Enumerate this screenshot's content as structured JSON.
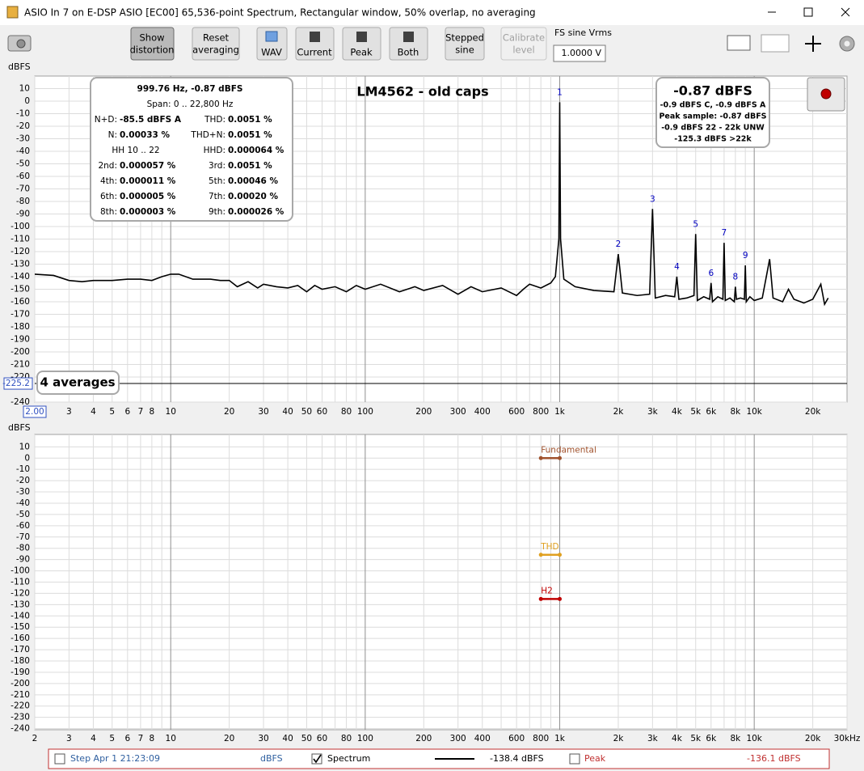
{
  "window": {
    "title": "ASIO In 7 on E-DSP ASIO [EC00] 65,536-point Spectrum, Rectangular window, 50% overlap, no averaging"
  },
  "toolbar": {
    "show_distortion": [
      "Show",
      "distortion"
    ],
    "reset_averaging": [
      "Reset",
      "averaging"
    ],
    "wav": "WAV",
    "current": "Current",
    "peak": "Peak",
    "both": "Both",
    "stepped_sine": [
      "Stepped",
      "sine"
    ],
    "calibrate_level": [
      "Calibrate",
      "level"
    ],
    "fs_label": "FS sine Vrms",
    "fs_value": "1.0000 V"
  },
  "stats": {
    "header": "999.76 Hz, -0.87 dBFS",
    "span": "Span: 0 .. 22,800 Hz",
    "rows": [
      {
        "left": {
          "label": "N+D:",
          "value": "-85.5 dBFS A"
        },
        "right": {
          "label": "THD:",
          "value": "0.0051 %"
        }
      },
      {
        "left": {
          "label": "N:",
          "value": "0.00033 %"
        },
        "right": {
          "label": "THD+N:",
          "value": "0.0051 %"
        }
      },
      {
        "left": {
          "label": "HH 10 .. 22"
        },
        "right": {
          "label": "HHD:",
          "value": "0.000064 %"
        }
      },
      {
        "left": {
          "label": "2nd:",
          "value": "0.000057 %"
        },
        "right": {
          "label": "3rd:",
          "value": "0.0051 %"
        }
      },
      {
        "left": {
          "label": "4th:",
          "value": "0.000011 %"
        },
        "right": {
          "label": "5th:",
          "value": "0.00046 %"
        }
      },
      {
        "left": {
          "label": "6th:",
          "value": "0.000005 %"
        },
        "right": {
          "label": "7th:",
          "value": "0.00020 %"
        }
      },
      {
        "left": {
          "label": "8th:",
          "value": "0.000003 %"
        },
        "right": {
          "label": "9th:",
          "value": "0.000026 %"
        }
      }
    ]
  },
  "readout": {
    "main": "-0.87 dBFS",
    "lines": [
      "-0.9 dBFS C, -0.9 dBFS A",
      "Peak sample: -0.87 dBFS",
      "-0.9 dBFS 22 - 22k UNW",
      "-125.3 dBFS >22k"
    ]
  },
  "status": {
    "step": "Step Apr 1 21:23:09",
    "unit": "dBFS",
    "spectrum_level": "-138.4 dBFS",
    "peak": "Peak",
    "peak_level": "-136.1 dBFS"
  },
  "chart_data": [
    {
      "type": "line",
      "title": "LM4562 - old caps",
      "y_label": "dBFS",
      "xscale": "log",
      "grid": true,
      "xlim": [
        2,
        30000
      ],
      "ylim": [
        -240,
        20
      ],
      "xticks": [
        {
          "value": 2,
          "label": "2.00"
        },
        3,
        4,
        5,
        6,
        7,
        8,
        10,
        20,
        30,
        40,
        50,
        60,
        80,
        100,
        200,
        300,
        400,
        600,
        800,
        {
          "value": 1000,
          "label": "1k"
        },
        {
          "value": 2000,
          "label": "2k"
        },
        {
          "value": 3000,
          "label": "3k"
        },
        {
          "value": 4000,
          "label": "4k"
        },
        {
          "value": 5000,
          "label": "5k"
        },
        {
          "value": 6000,
          "label": "6k"
        },
        {
          "value": 8000,
          "label": "8k"
        },
        {
          "value": 10000,
          "label": "10k"
        },
        {
          "value": 20000,
          "label": "20k"
        }
      ],
      "xticks_minor": [
        9,
        70,
        90,
        500,
        700,
        900,
        7000,
        9000
      ],
      "yticks": [
        10,
        0,
        -10,
        -20,
        -30,
        -40,
        -50,
        -60,
        -70,
        -80,
        -90,
        -100,
        -110,
        -120,
        -130,
        -140,
        -150,
        -160,
        -170,
        -180,
        -190,
        -200,
        -210,
        -220,
        -240
      ],
      "y_cursor": -225.2,
      "averages": "4 averages",
      "harmonic_labels": [
        "1",
        "2",
        "3",
        "4",
        "5",
        "6",
        "7",
        "8",
        "9"
      ],
      "series": [
        {
          "name": "Spectrum",
          "color": "#000000",
          "x": [
            2,
            2.5,
            3,
            3.5,
            4,
            5,
            6,
            7,
            8,
            9,
            10,
            11,
            13,
            16,
            18,
            20,
            22,
            25,
            28,
            30,
            35,
            40,
            45,
            50,
            55,
            60,
            70,
            80,
            90,
            100,
            120,
            150,
            180,
            200,
            250,
            300,
            350,
            400,
            500,
            600,
            650,
            700,
            800,
            900,
            950,
            990,
            999.76,
            1010,
            1050,
            1200,
            1500,
            1900,
            2000,
            2100,
            2500,
            2900,
            3000,
            3100,
            3500,
            3900,
            4000,
            4100,
            4500,
            4900,
            5000,
            5100,
            5500,
            5900,
            6000,
            6100,
            6500,
            6900,
            7000,
            7100,
            7500,
            7900,
            8000,
            8100,
            8500,
            8900,
            9000,
            9100,
            9500,
            10000,
            11000,
            12000,
            12500,
            14000,
            15000,
            16000,
            18000,
            20000,
            22000,
            23000,
            24000
          ],
          "values": [
            -138,
            -139,
            -143,
            -144,
            -143,
            -143,
            -142,
            -142,
            -143,
            -140,
            -138,
            -138,
            -142,
            -142,
            -143,
            -143,
            -148,
            -144,
            -149,
            -146,
            -148,
            -149,
            -147,
            -152,
            -147,
            -150,
            -148,
            -152,
            -147,
            -150,
            -146,
            -152,
            -148,
            -151,
            -147,
            -154,
            -148,
            -152,
            -149,
            -155,
            -150,
            -146,
            -149,
            -145,
            -140,
            -110,
            -0.87,
            -110,
            -142,
            -148,
            -151,
            -152,
            -122,
            -153,
            -155,
            -154,
            -86,
            -157,
            -155,
            -156,
            -140,
            -158,
            -157,
            -155,
            -106,
            -159,
            -156,
            -158,
            -145,
            -160,
            -156,
            -158,
            -113,
            -159,
            -157,
            -160,
            -148,
            -158,
            -157,
            -158,
            -131,
            -160,
            -156,
            -159,
            -157,
            -126,
            -157,
            -160,
            -150,
            -158,
            -161,
            -158,
            -146,
            -162,
            -157
          ]
        }
      ]
    },
    {
      "type": "line",
      "y_label": "dBFS",
      "xscale": "log",
      "grid": true,
      "labels": "inline",
      "xlim": [
        2,
        30000
      ],
      "ylim": [
        -241,
        21
      ],
      "xticks": [
        2,
        3,
        4,
        5,
        6,
        7,
        8,
        10,
        20,
        30,
        40,
        50,
        60,
        80,
        100,
        200,
        300,
        400,
        600,
        800,
        {
          "value": 1000,
          "label": "1k"
        },
        {
          "value": 2000,
          "label": "2k"
        },
        {
          "value": 3000,
          "label": "3k"
        },
        {
          "value": 4000,
          "label": "4k"
        },
        {
          "value": 5000,
          "label": "5k"
        },
        {
          "value": 6000,
          "label": "6k"
        },
        {
          "value": 8000,
          "label": "8k"
        },
        {
          "value": 10000,
          "label": "10k"
        },
        {
          "value": 20000,
          "label": "20k"
        },
        {
          "value": 30000,
          "label": "30kHz"
        }
      ],
      "xticks_minor": [
        9,
        70,
        90,
        500,
        700,
        900,
        7000,
        9000
      ],
      "yticks": [
        10,
        0,
        -10,
        -20,
        -30,
        -40,
        -50,
        -60,
        -70,
        -80,
        -90,
        -100,
        -110,
        -120,
        -130,
        -140,
        -150,
        -160,
        -170,
        -180,
        -190,
        -200,
        -210,
        -220,
        -230,
        -240
      ],
      "series": [
        {
          "name": "Fundamental",
          "color": "#a0522d",
          "x": [
            800,
            1000
          ],
          "values": [
            0,
            0
          ]
        },
        {
          "name": "THD",
          "color": "#e0a020",
          "x": [
            800,
            1000
          ],
          "values": [
            -85.8,
            -85.8
          ]
        },
        {
          "name": "H2",
          "color": "#c00000",
          "x": [
            800,
            1000
          ],
          "values": [
            -125,
            -125
          ]
        }
      ]
    }
  ]
}
